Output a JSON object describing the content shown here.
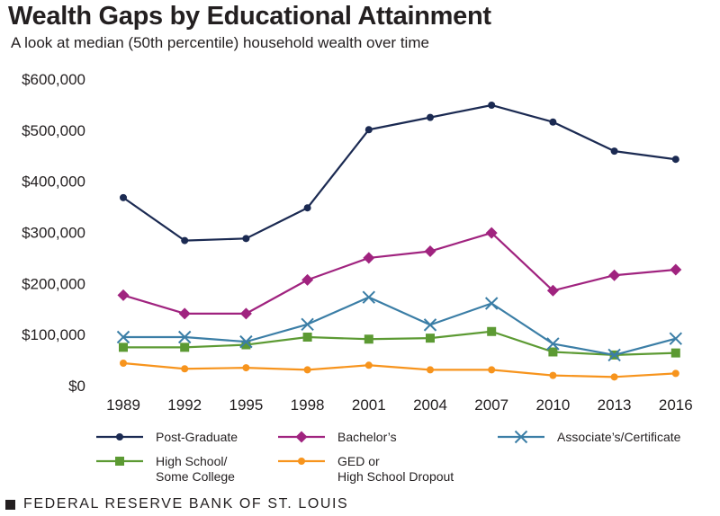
{
  "chart_data": {
    "type": "line",
    "title": "Wealth Gaps by Educational Attainment",
    "subtitle": "A look at median (50th percentile) household wealth over time",
    "xlabel": "",
    "ylabel": "",
    "categories": [
      "1989",
      "1992",
      "1995",
      "1998",
      "2001",
      "2004",
      "2007",
      "2010",
      "2013",
      "2016"
    ],
    "ylim": [
      0,
      600000
    ],
    "y_ticks": [
      0,
      100000,
      200000,
      300000,
      400000,
      500000,
      600000
    ],
    "y_tick_labels": [
      "$0",
      "$100,000",
      "$200,000",
      "$300,000",
      "$400,000",
      "$500,000",
      "$600,000"
    ],
    "grid": false,
    "legend_position": "bottom",
    "series": [
      {
        "name": "Post-Graduate",
        "color": "#1b2a52",
        "marker": "circle",
        "values": [
          368000,
          284000,
          288000,
          348000,
          501000,
          525000,
          549000,
          516000,
          459000,
          443000
        ]
      },
      {
        "name": "Bachelor's",
        "legend_lines": [
          "Bachelor’s"
        ],
        "color": "#a0237f",
        "marker": "diamond",
        "values": [
          177000,
          141000,
          141000,
          207000,
          250000,
          263000,
          299000,
          186000,
          216000,
          227000
        ]
      },
      {
        "name": "Associate's/Certificate",
        "legend_lines": [
          "Associate’s/Certificate"
        ],
        "color": "#3b7ea6",
        "marker": "x",
        "values": [
          95000,
          95000,
          86000,
          120000,
          173000,
          119000,
          161000,
          82000,
          60000,
          92000
        ]
      },
      {
        "name": "High School/Some College",
        "legend_lines": [
          "High School/",
          "Some College"
        ],
        "color": "#5c9a33",
        "marker": "square",
        "values": [
          75000,
          75000,
          80000,
          95000,
          91000,
          93000,
          106000,
          66000,
          60000,
          64000
        ]
      },
      {
        "name": "GED or High School Dropout",
        "legend_lines": [
          "GED or",
          "High School Dropout"
        ],
        "color": "#f7941d",
        "marker": "circle",
        "values": [
          44000,
          33000,
          35000,
          31000,
          40000,
          31000,
          31000,
          20000,
          17000,
          24000
        ]
      }
    ]
  },
  "footer": {
    "source": "FEDERAL RESERVE BANK OF ST. LOUIS"
  }
}
